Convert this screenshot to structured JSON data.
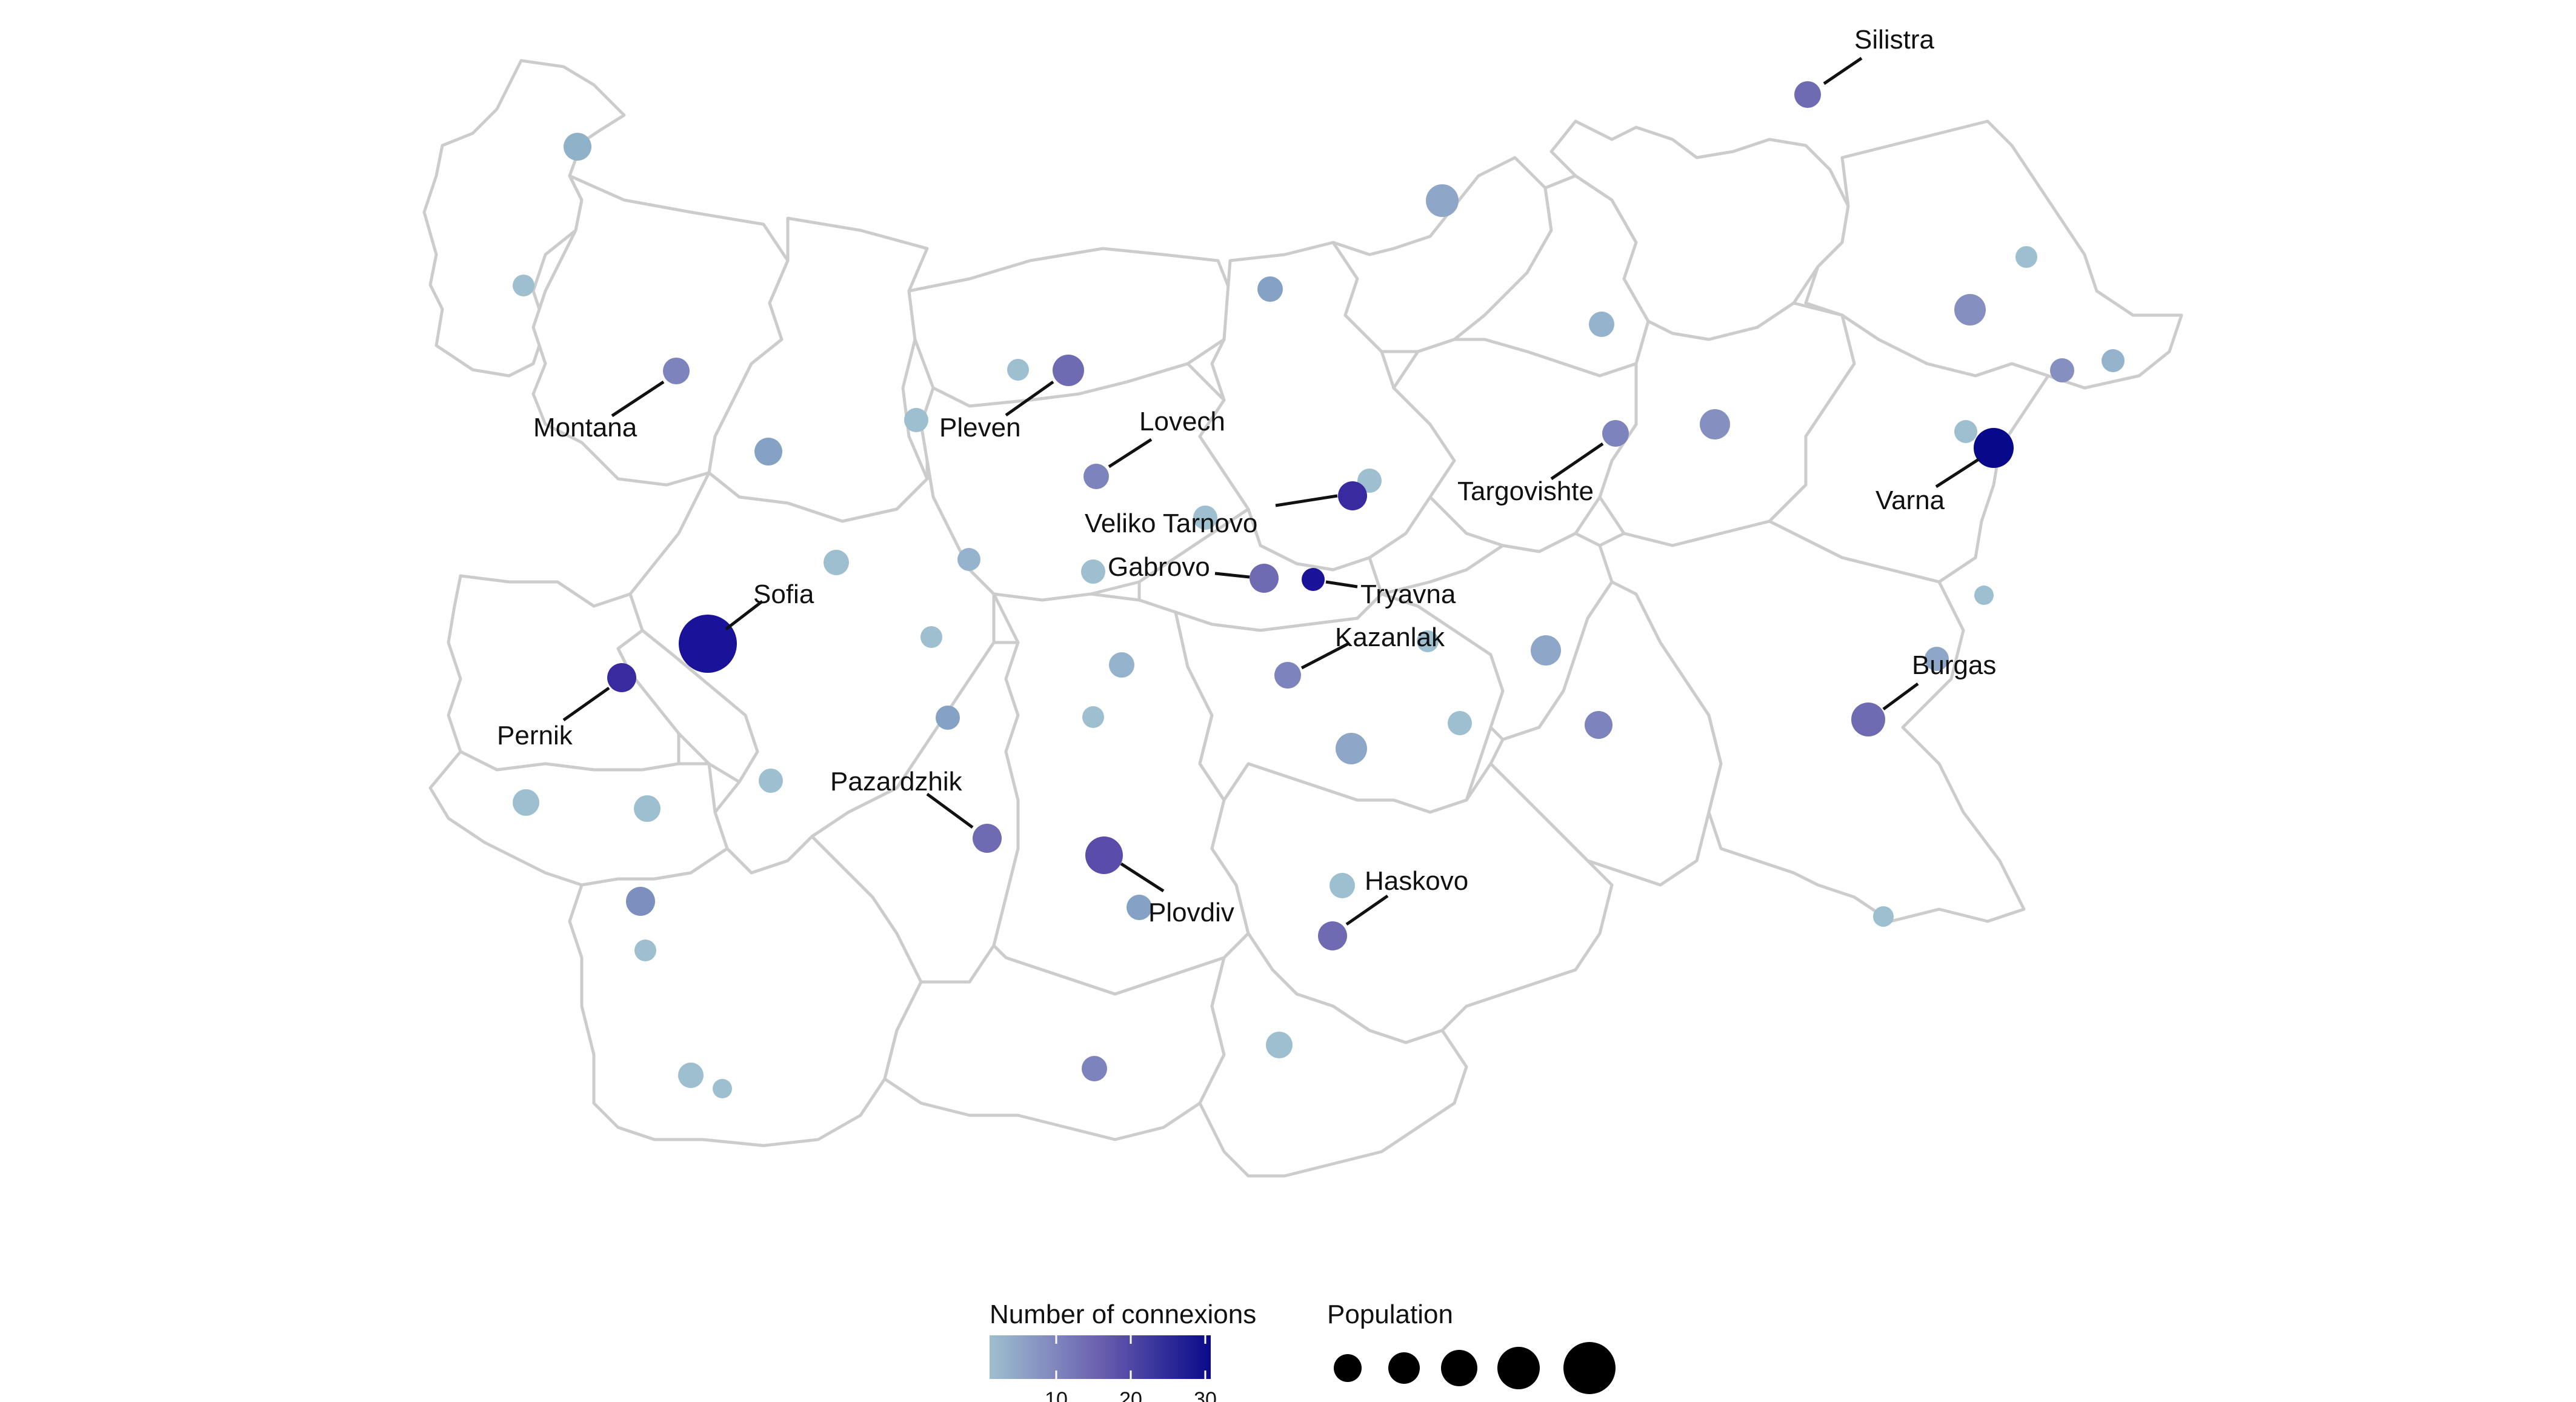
{
  "map": {
    "region": "Bulgaria",
    "boundary_color": "#cccccc",
    "labels": [
      {
        "text": "Silistra"
      },
      {
        "text": "Montana"
      },
      {
        "text": "Pleven"
      },
      {
        "text": "Lovech"
      },
      {
        "text": "Veliko Tarnovo"
      },
      {
        "text": "Targovishte"
      },
      {
        "text": "Varna"
      },
      {
        "text": "Gabrovo"
      },
      {
        "text": "Tryavna"
      },
      {
        "text": "Sofia"
      },
      {
        "text": "Kazanlak"
      },
      {
        "text": "Burgas"
      },
      {
        "text": "Pernik"
      },
      {
        "text": "Pazardzhik"
      },
      {
        "text": "Haskovo"
      },
      {
        "text": "Plovdiv"
      }
    ]
  },
  "legend": {
    "color": {
      "title": "Number of connexions",
      "low_color": "#9ebfcf",
      "mid_color": "#6a5fb0",
      "high_color": "#0a0a8a",
      "ticks": [
        "10",
        "20",
        "30"
      ]
    },
    "size": {
      "title": "Population",
      "key_color": "#000000"
    }
  }
}
